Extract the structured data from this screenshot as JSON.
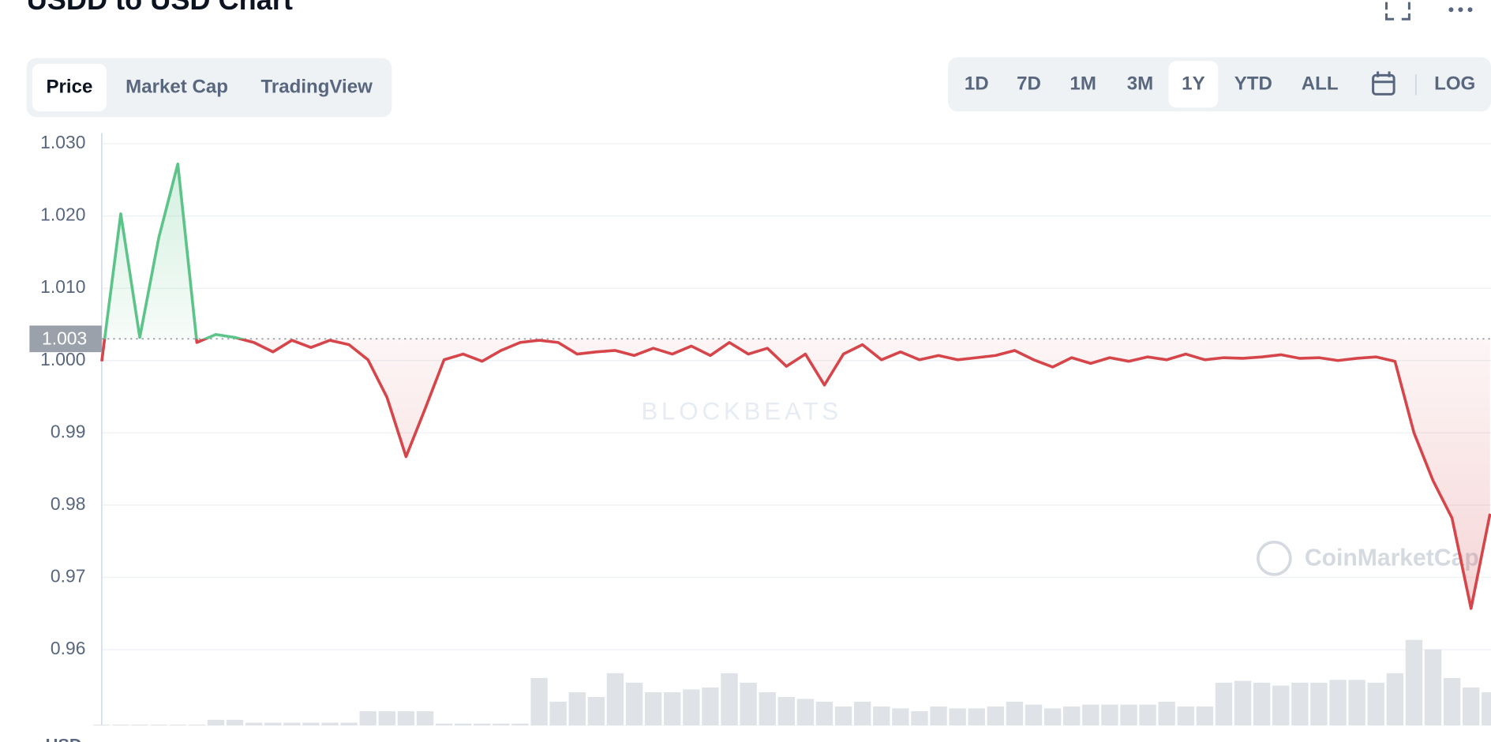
{
  "header": {
    "title": "USDD to USD Chart"
  },
  "tabs": [
    "Price",
    "Market Cap",
    "TradingView"
  ],
  "active_tab": 0,
  "ranges": [
    "1D",
    "7D",
    "1M",
    "3M",
    "1Y",
    "YTD",
    "ALL"
  ],
  "active_range": 4,
  "log_label": "LOG",
  "watermarks": [
    "BLOCKBEATS",
    "CoinMarketCap"
  ],
  "chart_data": {
    "type": "line",
    "values": [
      0.9999,
      1.0203,
      1.0032,
      1.017,
      1.0272,
      1.0025,
      1.0036,
      1.0032,
      1.0025,
      1.0012,
      1.0028,
      1.0018,
      1.0028,
      1.0022,
      1.0001,
      0.9949,
      0.9867,
      0.9933,
      1.0001,
      1.0009,
      0.9999,
      1.0014,
      1.0025,
      1.0028,
      1.0025,
      1.0009,
      1.0012,
      1.0014,
      1.0007,
      1.0017,
      1.0009,
      1.002,
      1.0007,
      1.0025,
      1.0009,
      1.0017,
      0.9992,
      1.0009,
      0.9966,
      1.0009,
      1.0022,
      1.0001,
      1.0012,
      1.0001,
      1.0007,
      1.0001,
      1.0004,
      1.0007,
      1.0014,
      1.0001,
      0.9991,
      1.0004,
      0.9996,
      1.0004,
      0.9999,
      1.0005,
      1.0001,
      1.0009,
      1.0001,
      1.0004,
      1.0003,
      1.0005,
      1.0008,
      1.0003,
      1.0004,
      1.0,
      1.0003,
      1.0005,
      0.9999,
      0.99,
      0.9834,
      0.9782,
      0.9657,
      0.9788
    ],
    "volume": [
      1,
      1,
      1,
      1,
      1,
      1,
      6,
      6,
      3,
      3,
      3,
      3,
      3,
      3,
      15,
      15,
      15,
      15,
      2,
      2,
      2,
      2,
      2,
      50,
      25,
      35,
      30,
      55,
      45,
      35,
      35,
      38,
      40,
      55,
      45,
      35,
      30,
      28,
      25,
      20,
      25,
      20,
      18,
      15,
      20,
      18,
      18,
      20,
      25,
      22,
      18,
      20,
      22,
      22,
      22,
      22,
      25,
      20,
      20,
      45,
      47,
      45,
      42,
      45,
      45,
      48,
      48,
      45,
      55,
      90,
      80,
      50,
      40,
      35
    ],
    "ylim": [
      0.9495,
      1.0315
    ],
    "yticks": [
      {
        "value": 1.03,
        "label": "1.030"
      },
      {
        "value": 1.02,
        "label": "1.020"
      },
      {
        "value": 1.01,
        "label": "1.010"
      },
      {
        "value": 1.0,
        "label": "1.000"
      },
      0.99,
      0.98,
      0.97,
      0.96
    ],
    "baseline": {
      "value": 1.003,
      "label": "1.003"
    },
    "up_color": "#5cc489",
    "down_color": "#d6454a",
    "grid": true,
    "y_unit": "USD"
  }
}
